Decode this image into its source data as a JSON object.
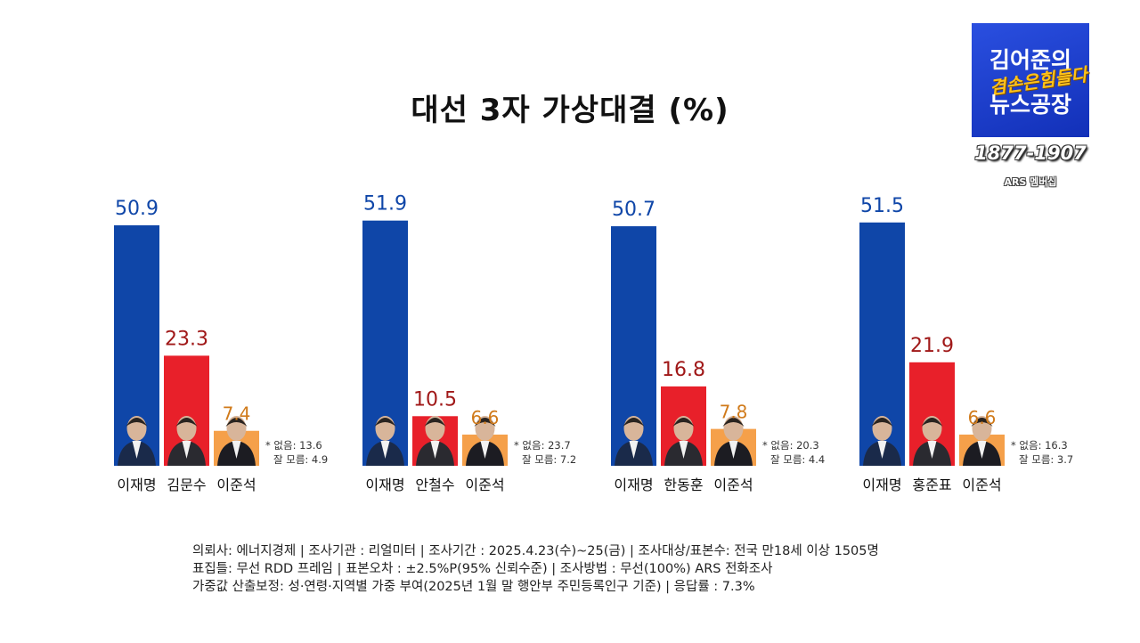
{
  "chart_data": {
    "type": "bar",
    "title": "대선  3자 가상대결 (%)",
    "ylim": [
      0,
      55
    ],
    "colors": {
      "party_a": "#0f46a8",
      "party_b": "#e8202a",
      "party_c": "#f5a04a",
      "label_a": "#0f46a8",
      "label_b": "#a01818",
      "label_c": "#d07a1a"
    },
    "groups": [
      {
        "categories": [
          "이재명",
          "김문수",
          "이준석"
        ],
        "values": [
          50.9,
          23.3,
          7.4
        ],
        "value_labels": [
          "50.9",
          "23.3",
          "7.4"
        ],
        "note_none": "* 없음: 13.6",
        "note_dontknow": "잘 모름: 4.9"
      },
      {
        "categories": [
          "이재명",
          "안철수",
          "이준석"
        ],
        "values": [
          51.9,
          10.5,
          6.6
        ],
        "value_labels": [
          "51.9",
          "10.5",
          "6.6"
        ],
        "note_none": "* 없음: 23.7",
        "note_dontknow": "잘 모름: 7.2"
      },
      {
        "categories": [
          "이재명",
          "한동훈",
          "이준석"
        ],
        "values": [
          50.7,
          16.8,
          7.8
        ],
        "value_labels": [
          "50.7",
          "16.8",
          "7.8"
        ],
        "note_none": "* 없음: 20.3",
        "note_dontknow": "잘 모름: 4.4"
      },
      {
        "categories": [
          "이재명",
          "홍준표",
          "이준석"
        ],
        "values": [
          51.5,
          21.9,
          6.6
        ],
        "value_labels": [
          "51.5",
          "21.9",
          "6.6"
        ],
        "note_none": "* 없음: 16.3",
        "note_dontknow": "잘 모름: 3.7"
      }
    ]
  },
  "footer": {
    "line1": "의뢰사: 에너지경제 | 조사기관 : 리얼미터  |  조사기간 : 2025.4.23(수)~25(금) | 조사대상/표본수: 전국 만18세 이상 1505명",
    "line2": "표집틀: 무선 RDD 프레임 | 표본오차 : ±2.5%P(95% 신뢰수준) | 조사방법 : 무선(100%) ARS 전화조사",
    "line3": "가중값 산출보정: 성·연령·지역별 가중 부여(2025년 1월 말 행안부 주민등록인구 기준) | 응답률 : 7.3%"
  },
  "logo": {
    "line1": "김어준의",
    "tag": "겸손은힘들다",
    "line2": "뉴스공장",
    "phone": "1877-1907",
    "sub": "ARS 멤버십"
  }
}
